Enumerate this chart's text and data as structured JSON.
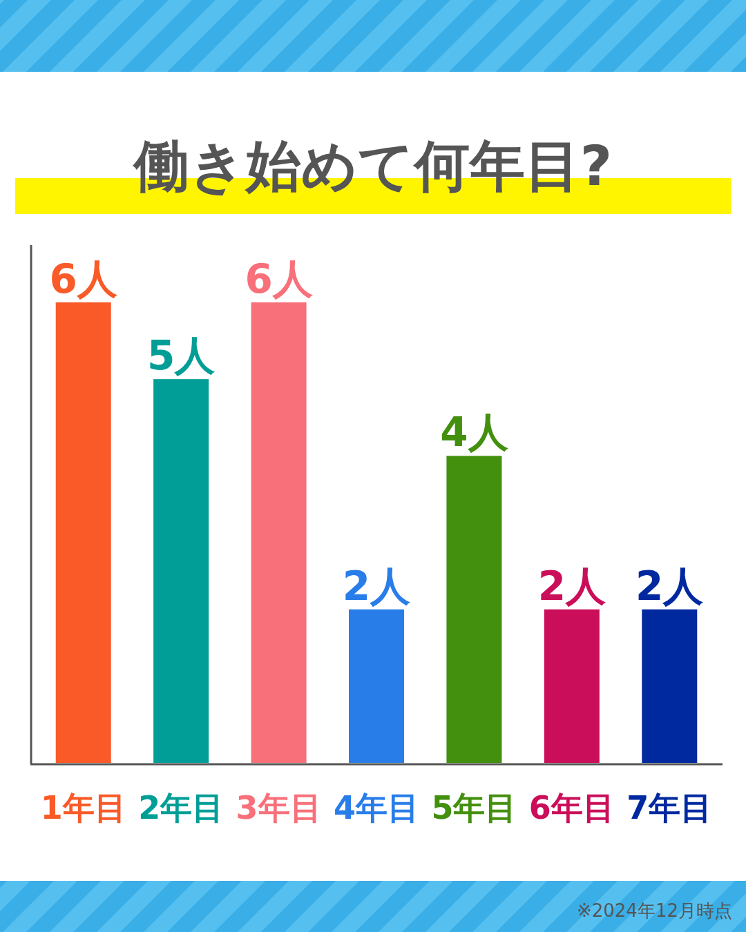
{
  "chart_data": {
    "type": "bar",
    "title": "働き始めて何年目?",
    "categories": [
      "1年目",
      "2年目",
      "3年目",
      "4年目",
      "5年目",
      "6年目",
      "7年目"
    ],
    "values": [
      6,
      5,
      6,
      2,
      4,
      2,
      2
    ],
    "colors": [
      "#f95a28",
      "#009e96",
      "#f8707a",
      "#287de9",
      "#43900e",
      "#cb0e5a",
      "#0029a0"
    ],
    "value_labels": [
      "6人",
      "5人",
      "6人",
      "2人",
      "4人",
      "2人",
      "2人"
    ],
    "annotations": [
      "※2024年12月時点"
    ]
  }
}
